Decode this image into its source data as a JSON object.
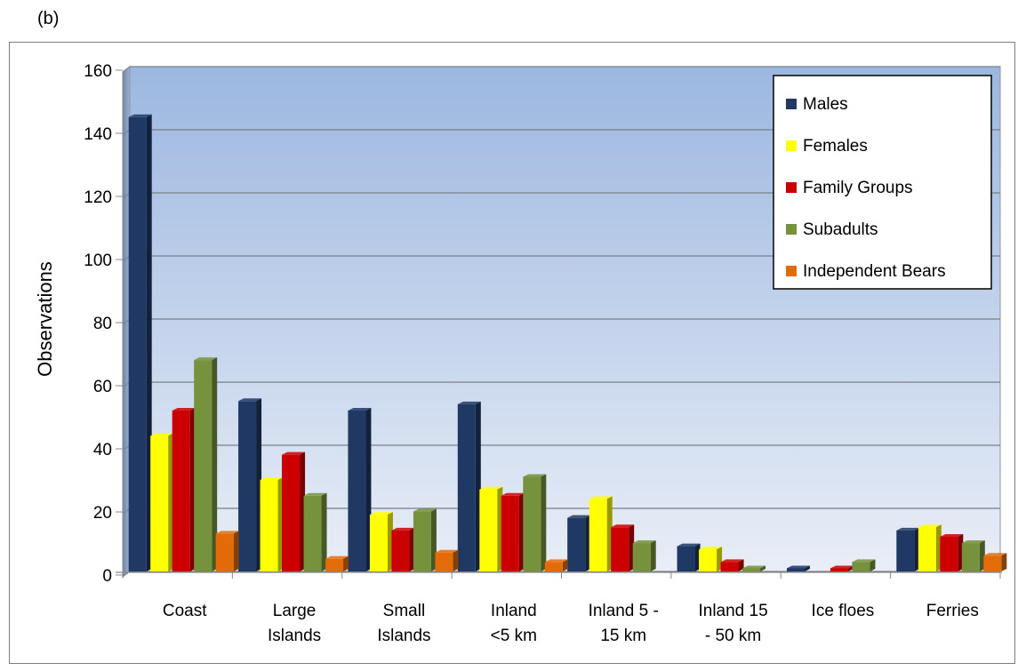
{
  "panel_label": "(b)",
  "chart_data": {
    "type": "bar",
    "title": "",
    "xlabel": "",
    "ylabel": "Observations",
    "ylim": [
      0,
      160
    ],
    "yticks": [
      0,
      20,
      40,
      60,
      80,
      100,
      120,
      140,
      160
    ],
    "grid": true,
    "legend_position": "top-right",
    "categories": [
      [
        "Coast"
      ],
      [
        "Large",
        "Islands"
      ],
      [
        "Small",
        "Islands"
      ],
      [
        "Inland",
        "<5 km"
      ],
      [
        "Inland 5 -",
        "15 km"
      ],
      [
        "Inland 15",
        "- 50 km"
      ],
      [
        "Ice floes"
      ],
      [
        "Ferries"
      ]
    ],
    "series": [
      {
        "name": "Males",
        "color": "#1f3864",
        "values": [
          144,
          54,
          51,
          53,
          17,
          8,
          1,
          13
        ]
      },
      {
        "name": "Females",
        "color": "#ffff00",
        "values": [
          43,
          29,
          18,
          26,
          23,
          7,
          0,
          14
        ]
      },
      {
        "name": "Family Groups",
        "color": "#cc0000",
        "values": [
          51,
          37,
          13,
          24,
          14,
          3,
          1,
          11
        ]
      },
      {
        "name": "Subadults",
        "color": "#76923c",
        "values": [
          67,
          24,
          19,
          30,
          9,
          1,
          3,
          9
        ]
      },
      {
        "name": "Independent Bears",
        "color": "#e36c09",
        "values": [
          12,
          4,
          6,
          3,
          0,
          0,
          0,
          5
        ]
      }
    ]
  }
}
